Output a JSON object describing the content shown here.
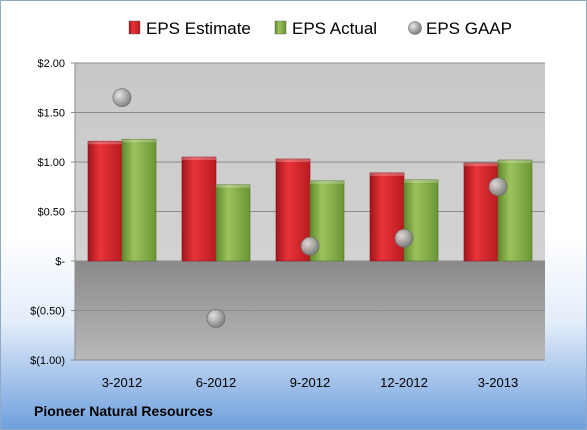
{
  "caption": "Pioneer Natural Resources",
  "chart_data": {
    "type": "bar",
    "categories": [
      "3-2012",
      "6-2012",
      "9-2012",
      "12-2012",
      "3-2013"
    ],
    "series": [
      {
        "name": "EPS Estimate",
        "type": "bar",
        "color": "#cc1a22",
        "values": [
          1.21,
          1.05,
          1.03,
          0.89,
          0.99
        ]
      },
      {
        "name": "EPS Actual",
        "type": "bar",
        "color": "#77a13c",
        "values": [
          1.23,
          0.77,
          0.81,
          0.82,
          1.02
        ]
      },
      {
        "name": "EPS GAAP",
        "type": "scatter",
        "color": "#9a9a9a",
        "values": [
          1.65,
          -0.58,
          0.15,
          0.23,
          0.75
        ]
      }
    ],
    "yticks": [
      {
        "value": 2.0,
        "label": "$2.00"
      },
      {
        "value": 1.5,
        "label": "$1.50"
      },
      {
        "value": 1.0,
        "label": "$1.00"
      },
      {
        "value": 0.5,
        "label": "$0.50"
      },
      {
        "value": 0.0,
        "label": "$-"
      },
      {
        "value": -0.5,
        "label": "$(0.50)"
      },
      {
        "value": -1.0,
        "label": "$(1.00)"
      }
    ],
    "ylim": [
      -1.0,
      2.0
    ],
    "grid": true,
    "legend": "top"
  }
}
